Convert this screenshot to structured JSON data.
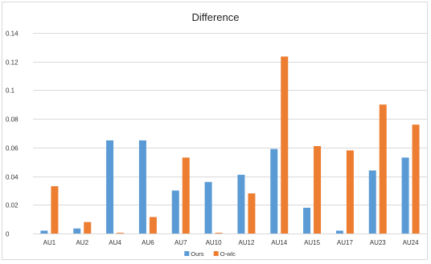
{
  "chart_data": {
    "type": "bar",
    "title": "Difference",
    "xlabel": "",
    "ylabel": "",
    "ylim": [
      0,
      0.14
    ],
    "y_ticks": [
      "0",
      "0.02",
      "0.04",
      "0.06",
      "0.08",
      "0.1",
      "0.12",
      "0.14"
    ],
    "grid": true,
    "legend_position": "bottom",
    "categories": [
      "AU1",
      "AU2",
      "AU4",
      "AU6",
      "AU7",
      "AU10",
      "AU12",
      "AU14",
      "AU15",
      "AU17",
      "AU23",
      "AU24"
    ],
    "series": [
      {
        "name": "Ours",
        "color": "#5b9bd5",
        "values": [
          0.002,
          0.0035,
          0.065,
          0.065,
          0.03,
          0.036,
          0.041,
          0.059,
          0.018,
          0.002,
          0.044,
          0.053
        ]
      },
      {
        "name": "O-wlc",
        "color": "#ed7d31",
        "values": [
          0.033,
          0.008,
          0.0005,
          0.0115,
          0.053,
          0.0005,
          0.028,
          0.1235,
          0.061,
          0.058,
          0.09,
          0.076
        ]
      }
    ]
  }
}
